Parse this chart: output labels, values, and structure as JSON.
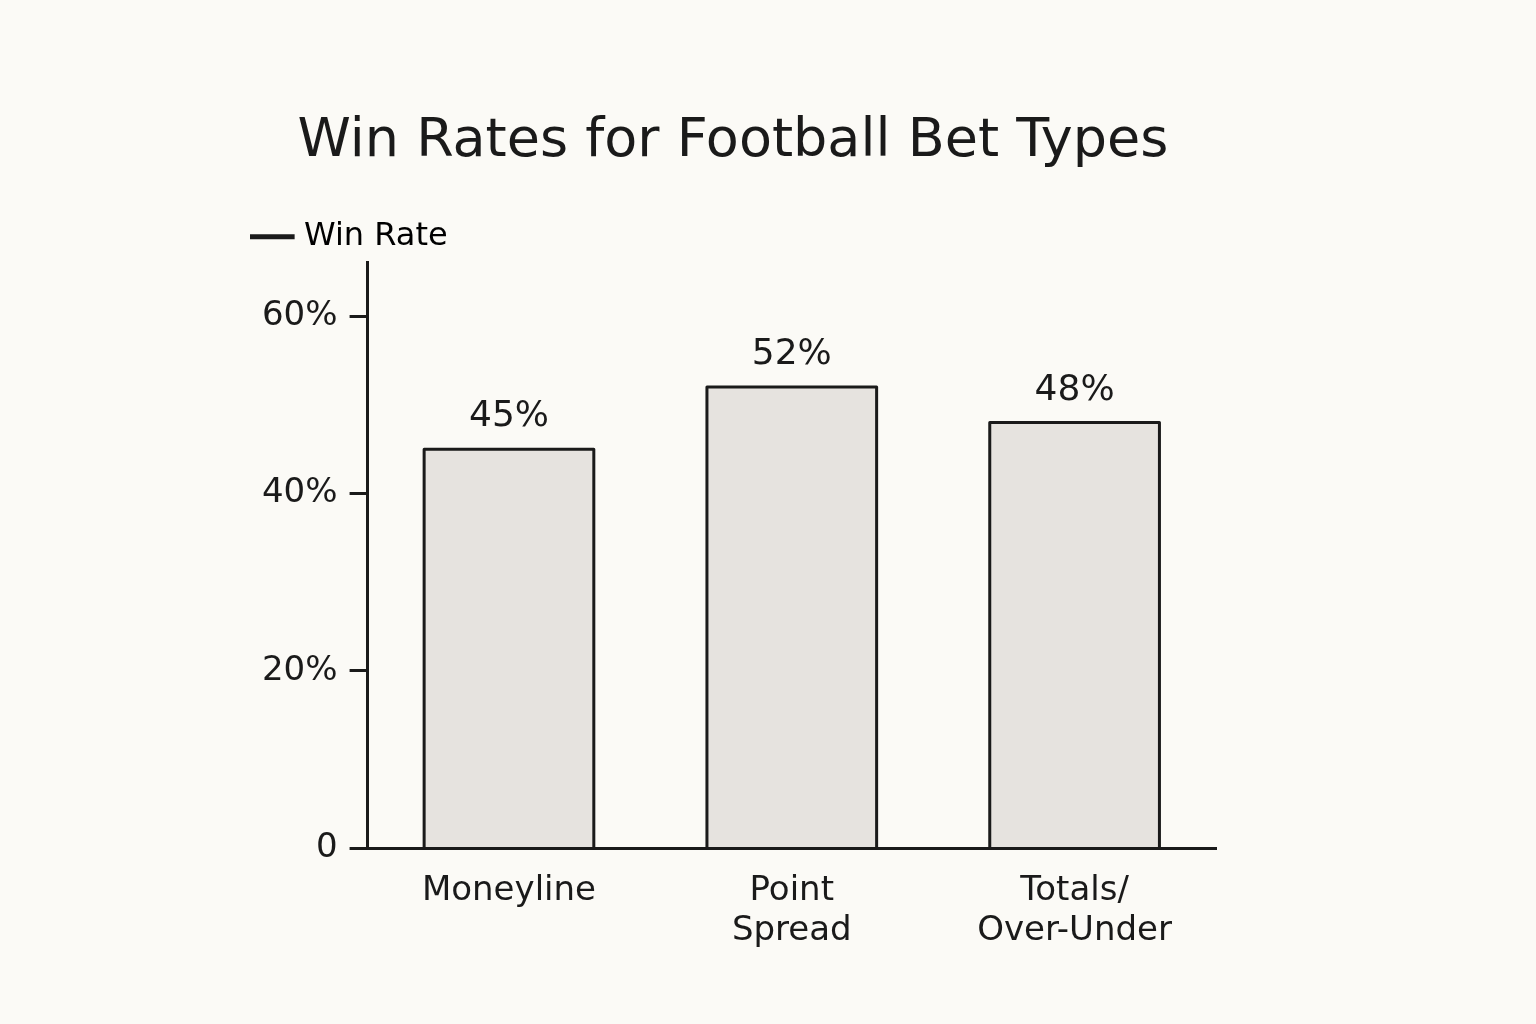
{
  "chart_data": {
    "type": "bar",
    "title": "Win Rates for Football Bet Types",
    "categories": [
      "Moneyline",
      "Point\nSpread",
      "Totals/\nOver-Under"
    ],
    "series": [
      {
        "name": "Win Rate",
        "color": "#e6e3df",
        "values": [
          45,
          52,
          48
        ],
        "value_labels": [
          "45%",
          "52%",
          "48%"
        ]
      }
    ],
    "ylim": [
      0,
      66
    ],
    "yticks": [
      {
        "value": 0,
        "label": "0"
      },
      {
        "value": 20,
        "label": "20%"
      },
      {
        "value": 40,
        "label": "40%"
      },
      {
        "value": 60,
        "label": "60%"
      }
    ],
    "grid": false,
    "legend": "top left"
  }
}
